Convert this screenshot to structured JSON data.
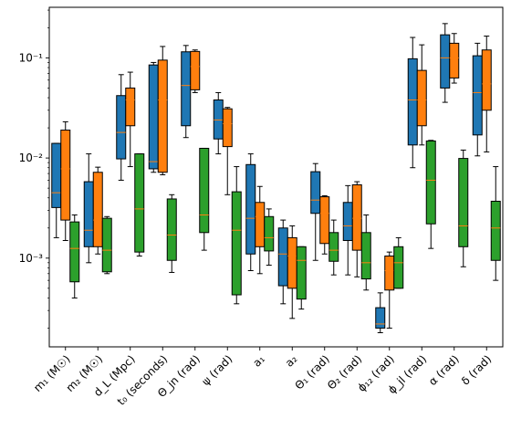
{
  "chart_data": {
    "type": "box",
    "yscale": "log",
    "ylim": [
      0.00013,
      0.32
    ],
    "yticks": [
      {
        "value": 0.001,
        "label": "10⁻³"
      },
      {
        "value": 0.01,
        "label": "10⁻²"
      },
      {
        "value": 0.1,
        "label": "10⁻¹"
      }
    ],
    "categories": [
      {
        "label": "m₁ (M☉)"
      },
      {
        "label": "m₂ (M☉)"
      },
      {
        "label": "d_L (Mpc)"
      },
      {
        "label": "t₀ (seconds)"
      },
      {
        "label": "Θ_jn (rad)"
      },
      {
        "label": "ψ (rad)"
      },
      {
        "label": "a₁"
      },
      {
        "label": "a₂"
      },
      {
        "label": "Θ₁ (rad)"
      },
      {
        "label": "Θ₂ (rad)"
      },
      {
        "label": "ϕ₁₂ (rad)"
      },
      {
        "label": "ϕ_jl (rad)"
      },
      {
        "label": "α (rad)"
      },
      {
        "label": "δ (rad)"
      }
    ],
    "colors": [
      "#1f77b4",
      "#ff7f0e",
      "#2ca02c"
    ],
    "median_color": "#ff7f0e",
    "series": [
      {
        "boxes": [
          {
            "whislo": 0.0016,
            "q1": 0.0032,
            "med": 0.0045,
            "q3": 0.014,
            "whishi": 0.014
          },
          {
            "whislo": 0.0009,
            "q1": 0.0013,
            "med": 0.0019,
            "q3": 0.0058,
            "whishi": 0.011
          },
          {
            "whislo": 0.006,
            "q1": 0.0098,
            "med": 0.018,
            "q3": 0.042,
            "whishi": 0.068
          },
          {
            "whislo": 0.0072,
            "q1": 0.0078,
            "med": 0.0092,
            "q3": 0.085,
            "whishi": 0.09
          },
          {
            "whislo": 0.016,
            "q1": 0.021,
            "med": 0.053,
            "q3": 0.115,
            "whishi": 0.133
          },
          {
            "whislo": 0.011,
            "q1": 0.0155,
            "med": 0.024,
            "q3": 0.038,
            "whishi": 0.045
          },
          {
            "whislo": 0.00075,
            "q1": 0.0011,
            "med": 0.0025,
            "q3": 0.0086,
            "whishi": 0.011
          },
          {
            "whislo": 0.00035,
            "q1": 0.00053,
            "med": 0.0011,
            "q3": 0.002,
            "whishi": 0.0024
          },
          {
            "whislo": 0.00095,
            "q1": 0.0028,
            "med": 0.0038,
            "q3": 0.0073,
            "whishi": 0.0088
          },
          {
            "whislo": 0.00068,
            "q1": 0.0015,
            "med": 0.0021,
            "q3": 0.0036,
            "whishi": 0.0053
          },
          {
            "whislo": 0.00018,
            "q1": 0.0002,
            "med": 0.00022,
            "q3": 0.00032,
            "whishi": 0.00045
          },
          {
            "whislo": 0.008,
            "q1": 0.0135,
            "med": 0.038,
            "q3": 0.098,
            "whishi": 0.16
          },
          {
            "whislo": 0.036,
            "q1": 0.05,
            "med": 0.1,
            "q3": 0.17,
            "whishi": 0.22
          },
          {
            "whislo": 0.0105,
            "q1": 0.017,
            "med": 0.045,
            "q3": 0.105,
            "whishi": 0.14
          }
        ]
      },
      {
        "boxes": [
          {
            "whislo": 0.0015,
            "q1": 0.0024,
            "med": 0.0078,
            "q3": 0.019,
            "whishi": 0.023
          },
          {
            "whislo": 0.0011,
            "q1": 0.0013,
            "med": 0.0024,
            "q3": 0.0072,
            "whishi": 0.0081
          },
          {
            "whislo": 0.0082,
            "q1": 0.021,
            "med": 0.038,
            "q3": 0.05,
            "whishi": 0.072
          },
          {
            "whislo": 0.0068,
            "q1": 0.0072,
            "med": 0.038,
            "q3": 0.095,
            "whishi": 0.13
          },
          {
            "whislo": 0.045,
            "q1": 0.048,
            "med": 0.082,
            "q3": 0.116,
            "whishi": 0.12
          },
          {
            "whislo": 0.0043,
            "q1": 0.013,
            "med": 0.022,
            "q3": 0.031,
            "whishi": 0.032
          },
          {
            "whislo": 0.0007,
            "q1": 0.0013,
            "med": 0.0026,
            "q3": 0.0036,
            "whishi": 0.0052
          },
          {
            "whislo": 0.00025,
            "q1": 0.0005,
            "med": 0.00105,
            "q3": 0.0016,
            "whishi": 0.0021
          },
          {
            "whislo": 0.0011,
            "q1": 0.0014,
            "med": 0.0028,
            "q3": 0.0041,
            "whishi": 0.0042
          },
          {
            "whislo": 0.00065,
            "q1": 0.0012,
            "med": 0.0025,
            "q3": 0.0054,
            "whishi": 0.0058
          },
          {
            "whislo": 0.0002,
            "q1": 0.00048,
            "med": 0.00075,
            "q3": 0.00105,
            "whishi": 0.00115
          },
          {
            "whislo": 0.0135,
            "q1": 0.021,
            "med": 0.038,
            "q3": 0.075,
            "whishi": 0.135
          },
          {
            "whislo": 0.056,
            "q1": 0.063,
            "med": 0.1,
            "q3": 0.14,
            "whishi": 0.175
          },
          {
            "whislo": 0.0115,
            "q1": 0.03,
            "med": 0.055,
            "q3": 0.12,
            "whishi": 0.165
          }
        ]
      },
      {
        "boxes": [
          {
            "whislo": 0.0004,
            "q1": 0.00058,
            "med": 0.00125,
            "q3": 0.0023,
            "whishi": 0.0027
          },
          {
            "whislo": 0.0007,
            "q1": 0.00073,
            "med": 0.0012,
            "q3": 0.0025,
            "whishi": 0.0026
          },
          {
            "whislo": 0.00105,
            "q1": 0.00115,
            "med": 0.0031,
            "q3": 0.011,
            "whishi": 0.011
          },
          {
            "whislo": 0.00072,
            "q1": 0.00095,
            "med": 0.0017,
            "q3": 0.0039,
            "whishi": 0.0043
          },
          {
            "whislo": 0.0012,
            "q1": 0.0018,
            "med": 0.0027,
            "q3": 0.0125,
            "whishi": 0.0125
          },
          {
            "whislo": 0.00035,
            "q1": 0.00043,
            "med": 0.0019,
            "q3": 0.0046,
            "whishi": 0.0082
          },
          {
            "whislo": 0.00085,
            "q1": 0.00118,
            "med": 0.0016,
            "q3": 0.0026,
            "whishi": 0.0031
          },
          {
            "whislo": 0.00031,
            "q1": 0.00039,
            "med": 0.00095,
            "q3": 0.0013,
            "whishi": 0.0013
          },
          {
            "whislo": 0.00068,
            "q1": 0.00093,
            "med": 0.0012,
            "q3": 0.0018,
            "whishi": 0.0024
          },
          {
            "whislo": 0.00048,
            "q1": 0.00062,
            "med": 0.0009,
            "q3": 0.0018,
            "whishi": 0.0027
          },
          {
            "whislo": 0.0005,
            "q1": 0.0005,
            "med": 0.0009,
            "q3": 0.0013,
            "whishi": 0.0016
          },
          {
            "whislo": 0.00125,
            "q1": 0.0022,
            "med": 0.006,
            "q3": 0.0148,
            "whishi": 0.015
          },
          {
            "whislo": 0.00082,
            "q1": 0.0013,
            "med": 0.0021,
            "q3": 0.0099,
            "whishi": 0.012
          },
          {
            "whislo": 0.0006,
            "q1": 0.00095,
            "med": 0.002,
            "q3": 0.0037,
            "whishi": 0.0082
          }
        ]
      }
    ]
  }
}
